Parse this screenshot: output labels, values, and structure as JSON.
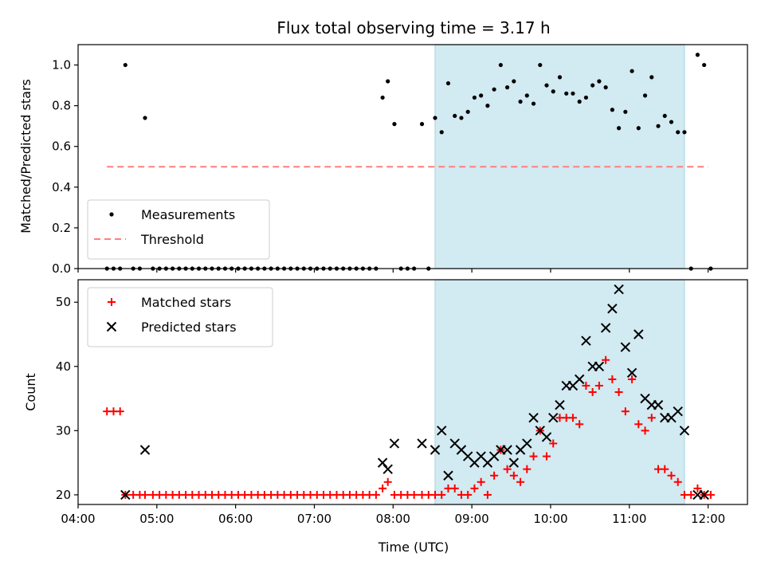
{
  "chart_data": [
    {
      "type": "scatter",
      "panel": "top",
      "title": "Flux total observing time = 3.17 h",
      "xlabel": "",
      "ylabel": "Matched/Predicted stars",
      "xlim": [
        "04:00",
        "12:30"
      ],
      "ylim": [
        0,
        1.1
      ],
      "yticks": [
        "0.0",
        "0.2",
        "0.4",
        "0.6",
        "0.8",
        "1.0"
      ],
      "shaded_range": [
        "08:32",
        "11:42"
      ],
      "shaded_color": "#add8e6",
      "legend_position": "lower-left",
      "series": [
        {
          "name": "Measurements",
          "marker": "dot",
          "color": "#000000",
          "points": [
            [
              "04:22",
              0
            ],
            [
              "04:27",
              0
            ],
            [
              "04:32",
              0
            ],
            [
              "04:36",
              1.0
            ],
            [
              "04:42",
              0
            ],
            [
              "04:47",
              0
            ],
            [
              "04:51",
              0.74
            ],
            [
              "04:57",
              0
            ],
            [
              "05:02",
              0
            ],
            [
              "05:07",
              0
            ],
            [
              "05:12",
              0
            ],
            [
              "05:17",
              0
            ],
            [
              "05:22",
              0
            ],
            [
              "05:27",
              0
            ],
            [
              "05:32",
              0
            ],
            [
              "05:37",
              0
            ],
            [
              "05:42",
              0
            ],
            [
              "05:47",
              0
            ],
            [
              "05:52",
              0
            ],
            [
              "05:57",
              0
            ],
            [
              "06:02",
              0
            ],
            [
              "06:07",
              0
            ],
            [
              "06:12",
              0
            ],
            [
              "06:17",
              0
            ],
            [
              "06:22",
              0
            ],
            [
              "06:27",
              0
            ],
            [
              "06:32",
              0
            ],
            [
              "06:37",
              0
            ],
            [
              "06:42",
              0
            ],
            [
              "06:47",
              0
            ],
            [
              "06:52",
              0
            ],
            [
              "06:57",
              0
            ],
            [
              "07:02",
              0
            ],
            [
              "07:07",
              0
            ],
            [
              "07:12",
              0
            ],
            [
              "07:17",
              0
            ],
            [
              "07:22",
              0
            ],
            [
              "07:27",
              0
            ],
            [
              "07:32",
              0
            ],
            [
              "07:37",
              0
            ],
            [
              "07:42",
              0
            ],
            [
              "07:47",
              0
            ],
            [
              "07:52",
              0.84
            ],
            [
              "07:56",
              0.92
            ],
            [
              "08:01",
              0.71
            ],
            [
              "08:06",
              0
            ],
            [
              "08:11",
              0
            ],
            [
              "08:16",
              0
            ],
            [
              "08:22",
              0.71
            ],
            [
              "08:27",
              0
            ],
            [
              "08:32",
              0.74
            ],
            [
              "08:37",
              0.67
            ],
            [
              "08:42",
              0.91
            ],
            [
              "08:47",
              0.75
            ],
            [
              "08:52",
              0.74
            ],
            [
              "08:57",
              0.77
            ],
            [
              "09:02",
              0.84
            ],
            [
              "09:07",
              0.85
            ],
            [
              "09:12",
              0.8
            ],
            [
              "09:17",
              0.88
            ],
            [
              "09:22",
              1.0
            ],
            [
              "09:27",
              0.89
            ],
            [
              "09:32",
              0.92
            ],
            [
              "09:37",
              0.82
            ],
            [
              "09:42",
              0.85
            ],
            [
              "09:47",
              0.81
            ],
            [
              "09:52",
              1.0
            ],
            [
              "09:57",
              0.9
            ],
            [
              "10:02",
              0.87
            ],
            [
              "10:07",
              0.94
            ],
            [
              "10:12",
              0.86
            ],
            [
              "10:17",
              0.86
            ],
            [
              "10:22",
              0.82
            ],
            [
              "10:27",
              0.84
            ],
            [
              "10:32",
              0.9
            ],
            [
              "10:37",
              0.92
            ],
            [
              "10:42",
              0.89
            ],
            [
              "10:47",
              0.78
            ],
            [
              "10:52",
              0.69
            ],
            [
              "10:57",
              0.77
            ],
            [
              "11:02",
              0.97
            ],
            [
              "11:07",
              0.69
            ],
            [
              "11:12",
              0.85
            ],
            [
              "11:17",
              0.94
            ],
            [
              "11:22",
              0.7
            ],
            [
              "11:27",
              0.75
            ],
            [
              "11:32",
              0.72
            ],
            [
              "11:37",
              0.67
            ],
            [
              "11:42",
              0.67
            ],
            [
              "11:47",
              0
            ],
            [
              "11:52",
              1.05
            ],
            [
              "11:57",
              1.0
            ],
            [
              "12:02",
              0
            ]
          ]
        },
        {
          "name": "Threshold",
          "marker": "dashed-line",
          "color": "#ff7f7f",
          "points": [
            [
              "04:22",
              0.5
            ],
            [
              "12:00",
              0.5
            ]
          ]
        }
      ]
    },
    {
      "type": "scatter",
      "panel": "bottom",
      "title": "",
      "xlabel": "Time (UTC)",
      "ylabel": "Count",
      "xlim": [
        "04:00",
        "12:30"
      ],
      "ylim": [
        18.5,
        53.5
      ],
      "yticks": [
        "20",
        "30",
        "40",
        "50"
      ],
      "xticks": [
        "04:00",
        "05:00",
        "06:00",
        "07:00",
        "08:00",
        "09:00",
        "10:00",
        "11:00",
        "12:00"
      ],
      "shaded_range": [
        "08:32",
        "11:42"
      ],
      "shaded_color": "#add8e6",
      "legend_position": "upper-left",
      "series": [
        {
          "name": "Matched stars",
          "marker": "plus",
          "color": "#ff0000",
          "points": [
            [
              "04:22",
              33
            ],
            [
              "04:27",
              33
            ],
            [
              "04:32",
              33
            ],
            [
              "04:36",
              20
            ],
            [
              "04:42",
              20
            ],
            [
              "04:47",
              20
            ],
            [
              "04:51",
              20
            ],
            [
              "04:57",
              20
            ],
            [
              "05:02",
              20
            ],
            [
              "05:07",
              20
            ],
            [
              "05:12",
              20
            ],
            [
              "05:17",
              20
            ],
            [
              "05:22",
              20
            ],
            [
              "05:27",
              20
            ],
            [
              "05:32",
              20
            ],
            [
              "05:37",
              20
            ],
            [
              "05:42",
              20
            ],
            [
              "05:47",
              20
            ],
            [
              "05:52",
              20
            ],
            [
              "05:57",
              20
            ],
            [
              "06:02",
              20
            ],
            [
              "06:07",
              20
            ],
            [
              "06:12",
              20
            ],
            [
              "06:17",
              20
            ],
            [
              "06:22",
              20
            ],
            [
              "06:27",
              20
            ],
            [
              "06:32",
              20
            ],
            [
              "06:37",
              20
            ],
            [
              "06:42",
              20
            ],
            [
              "06:47",
              20
            ],
            [
              "06:52",
              20
            ],
            [
              "06:57",
              20
            ],
            [
              "07:02",
              20
            ],
            [
              "07:07",
              20
            ],
            [
              "07:12",
              20
            ],
            [
              "07:17",
              20
            ],
            [
              "07:22",
              20
            ],
            [
              "07:27",
              20
            ],
            [
              "07:32",
              20
            ],
            [
              "07:37",
              20
            ],
            [
              "07:42",
              20
            ],
            [
              "07:47",
              20
            ],
            [
              "07:52",
              21
            ],
            [
              "07:56",
              22
            ],
            [
              "08:01",
              20
            ],
            [
              "08:06",
              20
            ],
            [
              "08:11",
              20
            ],
            [
              "08:16",
              20
            ],
            [
              "08:22",
              20
            ],
            [
              "08:27",
              20
            ],
            [
              "08:32",
              20
            ],
            [
              "08:37",
              20
            ],
            [
              "08:42",
              21
            ],
            [
              "08:47",
              21
            ],
            [
              "08:52",
              20
            ],
            [
              "08:57",
              20
            ],
            [
              "09:02",
              21
            ],
            [
              "09:07",
              22
            ],
            [
              "09:12",
              20
            ],
            [
              "09:17",
              23
            ],
            [
              "09:22",
              27
            ],
            [
              "09:27",
              24
            ],
            [
              "09:32",
              23
            ],
            [
              "09:37",
              22
            ],
            [
              "09:42",
              24
            ],
            [
              "09:47",
              26
            ],
            [
              "09:52",
              30
            ],
            [
              "09:57",
              26
            ],
            [
              "10:02",
              28
            ],
            [
              "10:07",
              32
            ],
            [
              "10:12",
              32
            ],
            [
              "10:17",
              32
            ],
            [
              "10:22",
              31
            ],
            [
              "10:27",
              37
            ],
            [
              "10:32",
              36
            ],
            [
              "10:37",
              37
            ],
            [
              "10:42",
              41
            ],
            [
              "10:47",
              38
            ],
            [
              "10:52",
              36
            ],
            [
              "10:57",
              33
            ],
            [
              "11:02",
              38
            ],
            [
              "11:07",
              31
            ],
            [
              "11:12",
              30
            ],
            [
              "11:17",
              32
            ],
            [
              "11:22",
              24
            ],
            [
              "11:27",
              24
            ],
            [
              "11:32",
              23
            ],
            [
              "11:37",
              22
            ],
            [
              "11:42",
              20
            ],
            [
              "11:47",
              20
            ],
            [
              "11:52",
              21
            ],
            [
              "11:57",
              20
            ],
            [
              "12:02",
              20
            ]
          ]
        },
        {
          "name": "Predicted stars",
          "marker": "x",
          "color": "#000000",
          "points": [
            [
              "04:36",
              20
            ],
            [
              "04:51",
              27
            ],
            [
              "07:52",
              25
            ],
            [
              "07:56",
              24
            ],
            [
              "08:01",
              28
            ],
            [
              "08:22",
              28
            ],
            [
              "08:32",
              27
            ],
            [
              "08:37",
              30
            ],
            [
              "08:42",
              23
            ],
            [
              "08:47",
              28
            ],
            [
              "08:52",
              27
            ],
            [
              "08:57",
              26
            ],
            [
              "09:02",
              25
            ],
            [
              "09:07",
              26
            ],
            [
              "09:12",
              25
            ],
            [
              "09:17",
              26
            ],
            [
              "09:22",
              27
            ],
            [
              "09:27",
              27
            ],
            [
              "09:32",
              25
            ],
            [
              "09:37",
              27
            ],
            [
              "09:42",
              28
            ],
            [
              "09:47",
              32
            ],
            [
              "09:52",
              30
            ],
            [
              "09:57",
              29
            ],
            [
              "10:02",
              32
            ],
            [
              "10:07",
              34
            ],
            [
              "10:12",
              37
            ],
            [
              "10:17",
              37
            ],
            [
              "10:22",
              38
            ],
            [
              "10:27",
              44
            ],
            [
              "10:32",
              40
            ],
            [
              "10:37",
              40
            ],
            [
              "10:42",
              46
            ],
            [
              "10:47",
              49
            ],
            [
              "10:52",
              52
            ],
            [
              "10:57",
              43
            ],
            [
              "11:02",
              39
            ],
            [
              "11:07",
              45
            ],
            [
              "11:12",
              35
            ],
            [
              "11:17",
              34
            ],
            [
              "11:22",
              34
            ],
            [
              "11:27",
              32
            ],
            [
              "11:32",
              32
            ],
            [
              "11:37",
              33
            ],
            [
              "11:42",
              30
            ],
            [
              "11:52",
              20
            ],
            [
              "11:57",
              20
            ]
          ]
        }
      ]
    }
  ]
}
